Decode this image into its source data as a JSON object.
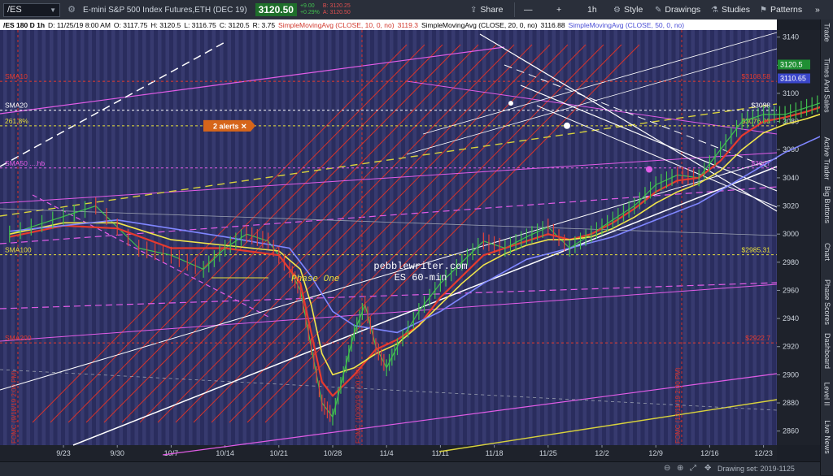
{
  "toolbar": {
    "symbol": "/ES",
    "description": "E-mini S&P 500 Index Futures,ETH (DEC 19)",
    "last_price": "3120.50",
    "change": "+9.00",
    "change_pct": "+0.29%",
    "bid": "B: 3120.25",
    "ask": "A: 3120.50",
    "share": "Share",
    "interval": "1h",
    "style": "Style",
    "drawings": "Drawings",
    "studies": "Studies",
    "patterns": "Patterns"
  },
  "header": {
    "info": "/ES 180 D 1h",
    "date": "D: 11/25/19 8:00 AM",
    "open": "O: 3117.75",
    "high": "H: 3120.5",
    "low": "L: 3116.75",
    "close": "C: 3120.5",
    "range": "R: 3.75",
    "sma10": "SimpleMovingAvg (CLOSE, 10, 0, no)",
    "sma10_val": "3119.3",
    "sma20": "SimpleMovingAvg (CLOSE, 20, 0, no)",
    "sma20_val": "3116.88",
    "sma50": "SimpleMovingAvg (CLOSE, 50, 0, no)"
  },
  "right_tabs": [
    "Trade",
    "Times And Sales",
    "Active Trader",
    "Big Buttons",
    "Chart",
    "Phase Scores",
    "Dashboard",
    "Level II",
    "Live News"
  ],
  "bottom": {
    "drawing_set": "Drawing set: 2019-1125"
  },
  "colors": {
    "bg": "#2a2d5e",
    "stripe": "#3a3d72",
    "sma10": "#e63a2e",
    "sma20": "#f2e64a",
    "sma50": "#7f86ff",
    "magenta": "#e15ce6",
    "white": "#ffffff",
    "yellow": "#e8df3a",
    "price_up": "#41c24f",
    "price_down": "#e0403a"
  },
  "chart_data": {
    "type": "line",
    "title": "",
    "ylim": [
      2850,
      3145
    ],
    "y_ticks": [
      2860,
      2880,
      2900,
      2920,
      2940,
      2960,
      2980,
      3000,
      3020,
      3040,
      3060,
      3080,
      3100,
      3120,
      3140
    ],
    "x_ticks": [
      "9/23",
      "9/30",
      "10/7",
      "10/14",
      "10/21",
      "10/28",
      "11/4",
      "11/11",
      "11/18",
      "11/25",
      "12/2",
      "12/9",
      "12/16",
      "12/23"
    ],
    "annotations": {
      "watermark": "pebblewriter.com",
      "watermark2": "ES 60-min",
      "phase": "Phase One",
      "alerts": "2 alerts ✕",
      "fomc": [
        "FOMC (9/18/19 2:00 PM)",
        "FOMC (10/30/19 2:00 PM)",
        "FOMC (12/11/19 2:00 PM)"
      ]
    },
    "levels": [
      {
        "name": "SMA10",
        "value": 3108.58,
        "label": "$3108.58",
        "color": "#e63a2e"
      },
      {
        "name": "SMA20",
        "value": 3088,
        "label": "$3088",
        "color": "#ffffff"
      },
      {
        "name": "261.8%",
        "value": 3076.93,
        "label": "$3076.93",
        "color": "#e8df3a"
      },
      {
        "name": "SMA50",
        "value": 3047,
        "label": "$3047",
        "color": "#e15ce6",
        "tag": "SMA50 ....hb"
      },
      {
        "name": "SMA100",
        "value": 2985.31,
        "label": "$2985.31",
        "color": "#e8df3a"
      },
      {
        "name": "SMA200",
        "value": 2922.7,
        "label": "$2922.7",
        "color": "#e63a2e"
      }
    ],
    "price_tags": [
      {
        "value": 3120.5,
        "label": "3120.5",
        "color": "#1f8f34"
      },
      {
        "value": 3110.65,
        "label": "3110.65",
        "color": "#3a46c9"
      }
    ],
    "series": [
      {
        "name": "price",
        "color": "#41c24f",
        "points": [
          [
            0,
            3000
          ],
          [
            4,
            3010
          ],
          [
            8,
            3020
          ],
          [
            12,
            2990
          ],
          [
            15,
            2985
          ],
          [
            18,
            2975
          ],
          [
            20,
            2990
          ],
          [
            22,
            3000
          ],
          [
            24,
            2995
          ],
          [
            26,
            2975
          ],
          [
            27,
            2960
          ],
          [
            28,
            2920
          ],
          [
            29,
            2880
          ],
          [
            30,
            2870
          ],
          [
            31,
            2900
          ],
          [
            32,
            2930
          ],
          [
            33,
            2950
          ],
          [
            34,
            2920
          ],
          [
            35,
            2905
          ],
          [
            36,
            2920
          ],
          [
            38,
            2945
          ],
          [
            40,
            2965
          ],
          [
            42,
            2980
          ],
          [
            44,
            2995
          ],
          [
            46,
            2990
          ],
          [
            48,
            2998
          ],
          [
            50,
            3005
          ],
          [
            52,
            2990
          ],
          [
            54,
            3000
          ],
          [
            56,
            3010
          ],
          [
            58,
            3020
          ],
          [
            60,
            3035
          ],
          [
            62,
            3042
          ],
          [
            64,
            3040
          ],
          [
            66,
            3060
          ],
          [
            68,
            3080
          ],
          [
            70,
            3085
          ],
          [
            72,
            3085
          ],
          [
            74,
            3090
          ],
          [
            76,
            3095
          ],
          [
            78,
            3100
          ],
          [
            80,
            3110
          ],
          [
            82,
            3125
          ],
          [
            84,
            3132
          ],
          [
            85,
            3115
          ],
          [
            86,
            3108
          ],
          [
            88,
            3105
          ],
          [
            90,
            3112
          ],
          [
            92,
            3120
          ]
        ]
      },
      {
        "name": "SMA10",
        "color": "#e63a2e",
        "points": [
          [
            0,
            2998
          ],
          [
            5,
            3006
          ],
          [
            10,
            3004
          ],
          [
            15,
            2990
          ],
          [
            20,
            2990
          ],
          [
            25,
            2985
          ],
          [
            27,
            2965
          ],
          [
            28,
            2930
          ],
          [
            29,
            2895
          ],
          [
            30,
            2885
          ],
          [
            32,
            2900
          ],
          [
            34,
            2918
          ],
          [
            36,
            2925
          ],
          [
            38,
            2935
          ],
          [
            40,
            2955
          ],
          [
            42,
            2970
          ],
          [
            44,
            2985
          ],
          [
            46,
            2990
          ],
          [
            48,
            2995
          ],
          [
            50,
            3000
          ],
          [
            52,
            2996
          ],
          [
            54,
            3000
          ],
          [
            56,
            3008
          ],
          [
            58,
            3018
          ],
          [
            60,
            3030
          ],
          [
            62,
            3038
          ],
          [
            64,
            3040
          ],
          [
            66,
            3052
          ],
          [
            68,
            3070
          ],
          [
            70,
            3080
          ],
          [
            72,
            3083
          ],
          [
            74,
            3087
          ],
          [
            76,
            3092
          ],
          [
            78,
            3098
          ],
          [
            80,
            3105
          ],
          [
            82,
            3118
          ],
          [
            84,
            3125
          ],
          [
            86,
            3115
          ],
          [
            88,
            3108
          ],
          [
            90,
            3110
          ],
          [
            92,
            3118
          ]
        ]
      },
      {
        "name": "SMA20",
        "color": "#f2e64a",
        "points": [
          [
            0,
            3000
          ],
          [
            5,
            3008
          ],
          [
            10,
            3008
          ],
          [
            15,
            2996
          ],
          [
            20,
            2992
          ],
          [
            25,
            2988
          ],
          [
            27,
            2975
          ],
          [
            28,
            2950
          ],
          [
            29,
            2915
          ],
          [
            30,
            2900
          ],
          [
            32,
            2905
          ],
          [
            34,
            2915
          ],
          [
            36,
            2922
          ],
          [
            38,
            2935
          ],
          [
            40,
            2950
          ],
          [
            42,
            2965
          ],
          [
            44,
            2978
          ],
          [
            46,
            2986
          ],
          [
            48,
            2992
          ],
          [
            50,
            2996
          ],
          [
            52,
            2996
          ],
          [
            54,
            2998
          ],
          [
            56,
            3004
          ],
          [
            58,
            3012
          ],
          [
            60,
            3022
          ],
          [
            62,
            3030
          ],
          [
            64,
            3036
          ],
          [
            66,
            3045
          ],
          [
            68,
            3060
          ],
          [
            70,
            3072
          ],
          [
            72,
            3078
          ],
          [
            74,
            3082
          ],
          [
            76,
            3087
          ],
          [
            78,
            3093
          ],
          [
            80,
            3100
          ],
          [
            82,
            3110
          ],
          [
            84,
            3118
          ],
          [
            86,
            3116
          ],
          [
            88,
            3112
          ],
          [
            90,
            3110
          ],
          [
            92,
            3116
          ]
        ]
      },
      {
        "name": "SMA50",
        "color": "#7f86ff",
        "points": [
          [
            0,
            3002
          ],
          [
            10,
            3010
          ],
          [
            20,
            2998
          ],
          [
            26,
            2990
          ],
          [
            28,
            2970
          ],
          [
            30,
            2945
          ],
          [
            32,
            2935
          ],
          [
            36,
            2930
          ],
          [
            40,
            2945
          ],
          [
            44,
            2965
          ],
          [
            48,
            2982
          ],
          [
            52,
            2990
          ],
          [
            56,
            2998
          ],
          [
            60,
            3010
          ],
          [
            64,
            3022
          ],
          [
            68,
            3040
          ],
          [
            72,
            3058
          ],
          [
            76,
            3072
          ],
          [
            80,
            3086
          ],
          [
            84,
            3100
          ],
          [
            88,
            3106
          ],
          [
            92,
            3110
          ]
        ]
      }
    ]
  }
}
